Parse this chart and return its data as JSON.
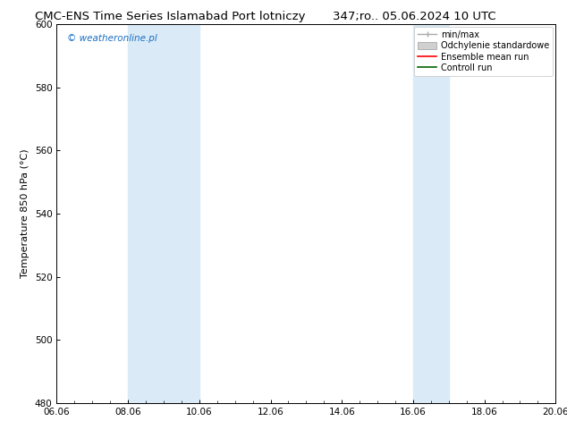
{
  "title_left": "CMC-ENS Time Series Islamabad Port lotniczy",
  "title_right": "347;ro.. 05.06.2024 10 UTC",
  "ylabel": "Temperature 850 hPa (°C)",
  "ylim": [
    480,
    600
  ],
  "yticks": [
    480,
    500,
    520,
    540,
    560,
    580,
    600
  ],
  "xtick_labels": [
    "06.06",
    "08.06",
    "10.06",
    "12.06",
    "14.06",
    "16.06",
    "18.06",
    "20.06"
  ],
  "xtick_positions": [
    0,
    2,
    4,
    6,
    8,
    10,
    12,
    14
  ],
  "xlim_start": 0,
  "xlim_end": 14,
  "blue_bands": [
    {
      "xmin": 2,
      "xmax": 4
    },
    {
      "xmin": 10,
      "xmax": 11
    }
  ],
  "blue_band_color": "#daeaf7",
  "watermark_text": "© weatheronline.pl",
  "watermark_color": "#1a6fc4",
  "bg_color": "#ffffff",
  "title_fontsize": 9.5,
  "axis_label_fontsize": 8,
  "tick_fontsize": 7.5,
  "legend_fontsize": 7,
  "watermark_fontsize": 7.5,
  "legend_gray_line": "#aaaaaa",
  "legend_std_fill": "#d0d0d0",
  "legend_std_edge": "#aaaaaa",
  "legend_ens_color": "red",
  "legend_ctrl_color": "darkgreen"
}
